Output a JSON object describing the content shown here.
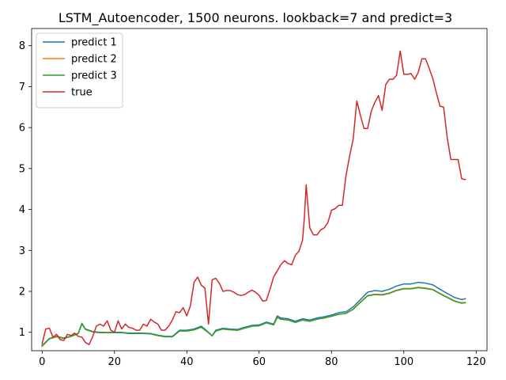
{
  "chart_data": {
    "type": "line",
    "title": "LSTM_Autoencoder, 1500 neurons. lookback=7 and predict=3",
    "xlabel": "",
    "ylabel": "",
    "xlim": [
      -2.9,
      123
    ],
    "ylim": [
      0.55,
      8.42
    ],
    "xticks": [
      0,
      20,
      40,
      60,
      80,
      100,
      120
    ],
    "yticks": [
      1,
      2,
      3,
      4,
      5,
      6,
      7,
      8
    ],
    "grid": false,
    "legend_position": "top-left",
    "series": [
      {
        "name": "predict 1",
        "color": "#1f77b4",
        "points": [
          [
            0,
            0.68
          ],
          [
            2,
            0.85
          ],
          [
            4,
            0.9
          ],
          [
            6,
            0.86
          ],
          [
            8,
            0.9
          ],
          [
            10,
            0.98
          ],
          [
            11,
            1.22
          ],
          [
            12,
            1.08
          ],
          [
            14,
            1.02
          ],
          [
            16,
            1.0
          ],
          [
            18,
            1.0
          ],
          [
            20,
            1.0
          ],
          [
            22,
            1.0
          ],
          [
            24,
            0.98
          ],
          [
            26,
            0.98
          ],
          [
            28,
            0.98
          ],
          [
            30,
            0.97
          ],
          [
            32,
            0.93
          ],
          [
            34,
            0.9
          ],
          [
            36,
            0.9
          ],
          [
            38,
            1.05
          ],
          [
            40,
            1.05
          ],
          [
            42,
            1.08
          ],
          [
            44,
            1.15
          ],
          [
            46,
            1.0
          ],
          [
            47,
            0.92
          ],
          [
            48,
            1.05
          ],
          [
            50,
            1.1
          ],
          [
            52,
            1.08
          ],
          [
            54,
            1.07
          ],
          [
            56,
            1.12
          ],
          [
            58,
            1.17
          ],
          [
            60,
            1.18
          ],
          [
            62,
            1.25
          ],
          [
            64,
            1.2
          ],
          [
            65,
            1.4
          ],
          [
            66,
            1.35
          ],
          [
            68,
            1.33
          ],
          [
            70,
            1.27
          ],
          [
            72,
            1.33
          ],
          [
            74,
            1.3
          ],
          [
            76,
            1.35
          ],
          [
            78,
            1.38
          ],
          [
            80,
            1.42
          ],
          [
            82,
            1.48
          ],
          [
            84,
            1.5
          ],
          [
            86,
            1.62
          ],
          [
            88,
            1.8
          ],
          [
            90,
            1.98
          ],
          [
            92,
            2.02
          ],
          [
            94,
            2.0
          ],
          [
            96,
            2.05
          ],
          [
            98,
            2.13
          ],
          [
            100,
            2.18
          ],
          [
            102,
            2.18
          ],
          [
            104,
            2.22
          ],
          [
            106,
            2.2
          ],
          [
            108,
            2.16
          ],
          [
            110,
            2.05
          ],
          [
            112,
            1.95
          ],
          [
            114,
            1.85
          ],
          [
            116,
            1.8
          ],
          [
            117,
            1.82
          ]
        ]
      },
      {
        "name": "predict 2",
        "color": "#ff7f0e",
        "points": [
          [
            0,
            0.67
          ],
          [
            2,
            0.84
          ],
          [
            4,
            0.9
          ],
          [
            6,
            0.85
          ],
          [
            8,
            0.9
          ],
          [
            10,
            0.97
          ],
          [
            11,
            1.2
          ],
          [
            12,
            1.07
          ],
          [
            14,
            1.01
          ],
          [
            16,
            0.99
          ],
          [
            18,
            1.0
          ],
          [
            20,
            0.99
          ],
          [
            22,
            0.99
          ],
          [
            24,
            0.97
          ],
          [
            26,
            0.97
          ],
          [
            28,
            0.97
          ],
          [
            30,
            0.96
          ],
          [
            32,
            0.92
          ],
          [
            34,
            0.89
          ],
          [
            36,
            0.89
          ],
          [
            38,
            1.03
          ],
          [
            40,
            1.03
          ],
          [
            42,
            1.06
          ],
          [
            44,
            1.12
          ],
          [
            46,
            0.99
          ],
          [
            47,
            0.92
          ],
          [
            48,
            1.03
          ],
          [
            50,
            1.08
          ],
          [
            52,
            1.06
          ],
          [
            54,
            1.05
          ],
          [
            56,
            1.1
          ],
          [
            58,
            1.15
          ],
          [
            60,
            1.16
          ],
          [
            62,
            1.23
          ],
          [
            64,
            1.18
          ],
          [
            65,
            1.36
          ],
          [
            66,
            1.32
          ],
          [
            68,
            1.3
          ],
          [
            70,
            1.24
          ],
          [
            72,
            1.3
          ],
          [
            74,
            1.27
          ],
          [
            76,
            1.32
          ],
          [
            78,
            1.35
          ],
          [
            80,
            1.39
          ],
          [
            82,
            1.44
          ],
          [
            84,
            1.46
          ],
          [
            86,
            1.57
          ],
          [
            88,
            1.74
          ],
          [
            90,
            1.9
          ],
          [
            92,
            1.93
          ],
          [
            94,
            1.92
          ],
          [
            96,
            1.96
          ],
          [
            98,
            2.03
          ],
          [
            100,
            2.07
          ],
          [
            102,
            2.07
          ],
          [
            104,
            2.1
          ],
          [
            106,
            2.08
          ],
          [
            108,
            2.05
          ],
          [
            110,
            1.95
          ],
          [
            112,
            1.86
          ],
          [
            114,
            1.77
          ],
          [
            116,
            1.72
          ],
          [
            117,
            1.73
          ]
        ]
      },
      {
        "name": "predict 3",
        "color": "#2ca02c",
        "points": [
          [
            0,
            0.66
          ],
          [
            2,
            0.84
          ],
          [
            4,
            0.89
          ],
          [
            6,
            0.85
          ],
          [
            8,
            0.9
          ],
          [
            10,
            0.97
          ],
          [
            11,
            1.21
          ],
          [
            12,
            1.07
          ],
          [
            14,
            1.01
          ],
          [
            16,
            0.99
          ],
          [
            18,
            0.99
          ],
          [
            20,
            0.99
          ],
          [
            22,
            0.99
          ],
          [
            24,
            0.97
          ],
          [
            26,
            0.97
          ],
          [
            28,
            0.97
          ],
          [
            30,
            0.96
          ],
          [
            32,
            0.92
          ],
          [
            34,
            0.89
          ],
          [
            36,
            0.89
          ],
          [
            38,
            1.03
          ],
          [
            40,
            1.03
          ],
          [
            42,
            1.06
          ],
          [
            44,
            1.13
          ],
          [
            46,
            0.99
          ],
          [
            47,
            0.91
          ],
          [
            48,
            1.03
          ],
          [
            50,
            1.08
          ],
          [
            52,
            1.06
          ],
          [
            54,
            1.05
          ],
          [
            56,
            1.1
          ],
          [
            58,
            1.15
          ],
          [
            60,
            1.16
          ],
          [
            62,
            1.23
          ],
          [
            64,
            1.18
          ],
          [
            65,
            1.37
          ],
          [
            66,
            1.32
          ],
          [
            68,
            1.3
          ],
          [
            70,
            1.24
          ],
          [
            72,
            1.3
          ],
          [
            74,
            1.27
          ],
          [
            76,
            1.32
          ],
          [
            78,
            1.35
          ],
          [
            80,
            1.39
          ],
          [
            82,
            1.44
          ],
          [
            84,
            1.46
          ],
          [
            86,
            1.56
          ],
          [
            88,
            1.73
          ],
          [
            90,
            1.89
          ],
          [
            92,
            1.92
          ],
          [
            94,
            1.91
          ],
          [
            96,
            1.95
          ],
          [
            98,
            2.02
          ],
          [
            100,
            2.06
          ],
          [
            102,
            2.06
          ],
          [
            104,
            2.09
          ],
          [
            106,
            2.07
          ],
          [
            108,
            2.04
          ],
          [
            110,
            1.94
          ],
          [
            112,
            1.85
          ],
          [
            114,
            1.76
          ],
          [
            116,
            1.71
          ],
          [
            117,
            1.72
          ]
        ]
      },
      {
        "name": "true",
        "color": "#d62728",
        "points": [
          [
            0,
            0.72
          ],
          [
            1,
            1.08
          ],
          [
            2,
            1.1
          ],
          [
            3,
            0.88
          ],
          [
            4,
            0.95
          ],
          [
            5,
            0.82
          ],
          [
            6,
            0.8
          ],
          [
            7,
            0.95
          ],
          [
            8,
            0.92
          ],
          [
            9,
            0.98
          ],
          [
            10,
            0.9
          ],
          [
            11,
            0.88
          ],
          [
            12,
            0.75
          ],
          [
            13,
            0.7
          ],
          [
            14,
            0.9
          ],
          [
            15,
            1.15
          ],
          [
            16,
            1.2
          ],
          [
            17,
            1.15
          ],
          [
            18,
            1.28
          ],
          [
            19,
            1.05
          ],
          [
            20,
            1.0
          ],
          [
            21,
            1.28
          ],
          [
            22,
            1.08
          ],
          [
            23,
            1.2
          ],
          [
            24,
            1.12
          ],
          [
            25,
            1.1
          ],
          [
            26,
            1.05
          ],
          [
            27,
            1.05
          ],
          [
            28,
            1.2
          ],
          [
            29,
            1.15
          ],
          [
            30,
            1.32
          ],
          [
            31,
            1.25
          ],
          [
            32,
            1.2
          ],
          [
            33,
            1.05
          ],
          [
            34,
            1.05
          ],
          [
            35,
            1.15
          ],
          [
            36,
            1.3
          ],
          [
            37,
            1.5
          ],
          [
            38,
            1.48
          ],
          [
            39,
            1.6
          ],
          [
            40,
            1.4
          ],
          [
            41,
            1.65
          ],
          [
            42,
            2.22
          ],
          [
            43,
            2.35
          ],
          [
            44,
            2.15
          ],
          [
            45,
            2.08
          ],
          [
            46,
            1.2
          ],
          [
            47,
            2.28
          ],
          [
            48,
            2.32
          ],
          [
            49,
            2.2
          ],
          [
            50,
            2.0
          ],
          [
            51,
            2.02
          ],
          [
            52,
            2.02
          ],
          [
            53,
            1.98
          ],
          [
            54,
            1.92
          ],
          [
            55,
            1.9
          ],
          [
            56,
            1.92
          ],
          [
            57,
            1.98
          ],
          [
            58,
            2.03
          ],
          [
            59,
            1.98
          ],
          [
            60,
            1.9
          ],
          [
            61,
            1.76
          ],
          [
            62,
            1.78
          ],
          [
            63,
            2.05
          ],
          [
            64,
            2.35
          ],
          [
            65,
            2.5
          ],
          [
            66,
            2.65
          ],
          [
            67,
            2.75
          ],
          [
            68,
            2.68
          ],
          [
            69,
            2.65
          ],
          [
            70,
            2.88
          ],
          [
            71,
            2.98
          ],
          [
            72,
            3.25
          ],
          [
            72.5,
            3.8
          ],
          [
            73,
            4.6
          ],
          [
            74,
            3.55
          ],
          [
            75,
            3.38
          ],
          [
            76,
            3.38
          ],
          [
            77,
            3.5
          ],
          [
            78,
            3.55
          ],
          [
            79,
            3.68
          ],
          [
            80,
            3.98
          ],
          [
            81,
            4.02
          ],
          [
            82,
            4.1
          ],
          [
            83,
            4.1
          ],
          [
            84,
            4.82
          ],
          [
            85,
            5.3
          ],
          [
            86,
            5.72
          ],
          [
            87,
            6.65
          ],
          [
            88,
            6.3
          ],
          [
            89,
            5.98
          ],
          [
            90,
            5.98
          ],
          [
            91,
            6.4
          ],
          [
            92,
            6.62
          ],
          [
            93,
            6.78
          ],
          [
            94,
            6.42
          ],
          [
            95,
            7.05
          ],
          [
            96,
            7.18
          ],
          [
            97,
            7.18
          ],
          [
            98,
            7.28
          ],
          [
            99,
            7.87
          ],
          [
            100,
            7.3
          ],
          [
            101,
            7.3
          ],
          [
            102,
            7.32
          ],
          [
            103,
            7.18
          ],
          [
            104,
            7.35
          ],
          [
            105,
            7.68
          ],
          [
            106,
            7.68
          ],
          [
            107,
            7.45
          ],
          [
            108,
            7.2
          ],
          [
            109,
            6.85
          ],
          [
            110,
            6.52
          ],
          [
            111,
            6.5
          ],
          [
            112,
            5.75
          ],
          [
            113,
            5.22
          ],
          [
            114,
            5.22
          ],
          [
            115,
            5.22
          ],
          [
            116,
            4.75
          ],
          [
            117,
            4.73
          ]
        ]
      }
    ]
  }
}
